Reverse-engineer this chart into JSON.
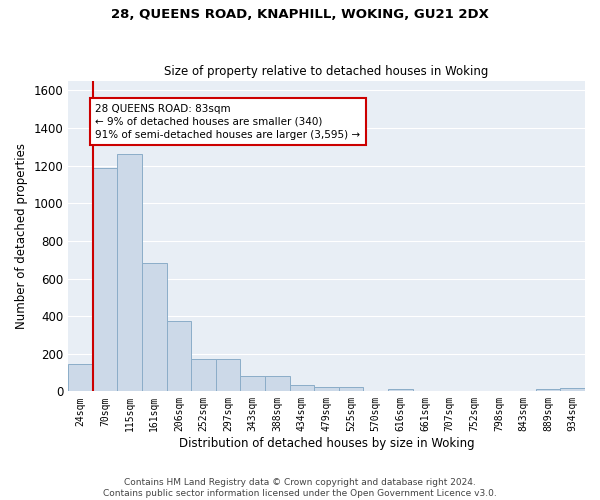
{
  "title1": "28, QUEENS ROAD, KNAPHILL, WOKING, GU21 2DX",
  "title2": "Size of property relative to detached houses in Woking",
  "xlabel": "Distribution of detached houses by size in Woking",
  "ylabel": "Number of detached properties",
  "categories": [
    "24sqm",
    "70sqm",
    "115sqm",
    "161sqm",
    "206sqm",
    "252sqm",
    "297sqm",
    "343sqm",
    "388sqm",
    "434sqm",
    "479sqm",
    "525sqm",
    "570sqm",
    "616sqm",
    "661sqm",
    "707sqm",
    "752sqm",
    "798sqm",
    "843sqm",
    "889sqm",
    "934sqm"
  ],
  "values": [
    145,
    1185,
    1260,
    680,
    375,
    170,
    170,
    83,
    83,
    35,
    22,
    22,
    0,
    14,
    0,
    0,
    0,
    0,
    0,
    15,
    20
  ],
  "bar_color": "#ccd9e8",
  "bar_edge_color": "#8badc8",
  "vline_color": "#cc0000",
  "annotation_text": "28 QUEENS ROAD: 83sqm\n← 9% of detached houses are smaller (340)\n91% of semi-detached houses are larger (3,595) →",
  "annotation_box_color": "#ffffff",
  "annotation_box_edge": "#cc0000",
  "ylim": [
    0,
    1650
  ],
  "yticks": [
    0,
    200,
    400,
    600,
    800,
    1000,
    1200,
    1400,
    1600
  ],
  "background_color": "#e8eef5",
  "grid_color": "#ffffff",
  "title1_fontsize": 9.5,
  "title2_fontsize": 8.5,
  "footer": "Contains HM Land Registry data © Crown copyright and database right 2024.\nContains public sector information licensed under the Open Government Licence v3.0."
}
